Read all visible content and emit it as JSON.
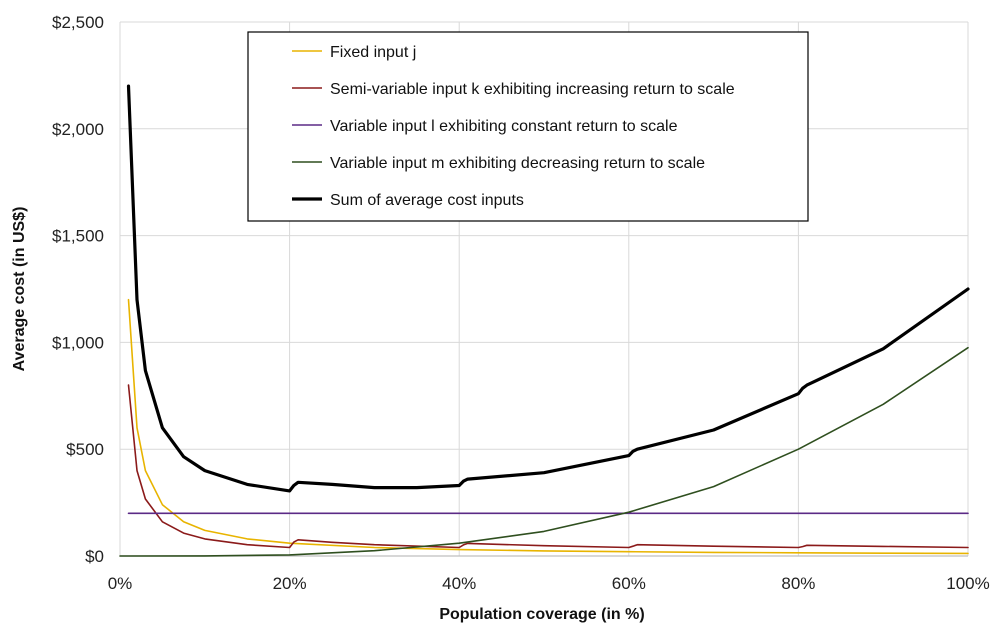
{
  "chart_data": {
    "type": "line",
    "xlabel": "Population coverage (in %)",
    "ylabel": "Average cost (in US$)",
    "xlim": [
      0,
      100
    ],
    "ylim": [
      0,
      2500
    ],
    "x_ticks": [
      0,
      20,
      40,
      60,
      80,
      100
    ],
    "x_tick_labels": [
      "0%",
      "20%",
      "40%",
      "60%",
      "80%",
      "100%"
    ],
    "y_ticks": [
      0,
      500,
      1000,
      1500,
      2000,
      2500
    ],
    "y_tick_labels": [
      "$0",
      "$500",
      "$1,000",
      "$1,500",
      "$2,000",
      "$2,500"
    ],
    "grid": true,
    "legend_position": "top-center",
    "series": [
      {
        "name": "Fixed input j",
        "color": "#e8b400",
        "x": [
          1,
          2,
          3,
          5,
          7.5,
          10,
          15,
          20,
          30,
          40,
          50,
          60,
          70,
          80,
          90,
          100
        ],
        "y": [
          1200,
          600,
          400,
          240,
          160,
          120,
          80,
          60,
          40,
          30,
          24,
          20,
          17,
          15,
          13,
          12
        ]
      },
      {
        "name": "Semi-variable input k exhibiting increasing return to scale",
        "color": "#8b1a1a",
        "x": [
          1,
          2,
          3,
          5,
          7.5,
          10,
          15,
          20,
          20.5,
          21,
          25,
          30,
          40,
          40.5,
          41,
          50,
          60,
          60.5,
          61,
          70,
          80,
          80.5,
          81,
          90,
          100
        ],
        "y": [
          800,
          400,
          267,
          160,
          107,
          80,
          53,
          40,
          65,
          76,
          64,
          53,
          40,
          52,
          59,
          48,
          40,
          46,
          53,
          46,
          40,
          44,
          50,
          45,
          40
        ]
      },
      {
        "name": "Variable input l exhibiting constant return to scale",
        "color": "#5b2a86",
        "x": [
          1,
          100
        ],
        "y": [
          200,
          200
        ]
      },
      {
        "name": "Variable input m exhibiting decreasing return to scale",
        "color": "#2f4f1f",
        "x": [
          0,
          10,
          20,
          30,
          40,
          50,
          60,
          70,
          80,
          90,
          100
        ],
        "y": [
          0,
          0.5,
          5,
          25,
          60,
          115,
          205,
          325,
          500,
          710,
          975
        ]
      },
      {
        "name": "Sum of average cost inputs",
        "color": "#000000",
        "x": [
          1,
          2,
          3,
          5,
          7.5,
          10,
          15,
          20,
          20.5,
          21,
          25,
          30,
          35,
          40,
          40.5,
          41,
          50,
          60,
          60.5,
          61,
          70,
          80,
          80.5,
          81,
          90,
          100
        ],
        "y": [
          2200,
          1200,
          868,
          600,
          465,
          400,
          335,
          305,
          330,
          345,
          335,
          320,
          320,
          330,
          350,
          360,
          390,
          470,
          490,
          500,
          590,
          760,
          785,
          800,
          970,
          1250
        ]
      }
    ]
  }
}
